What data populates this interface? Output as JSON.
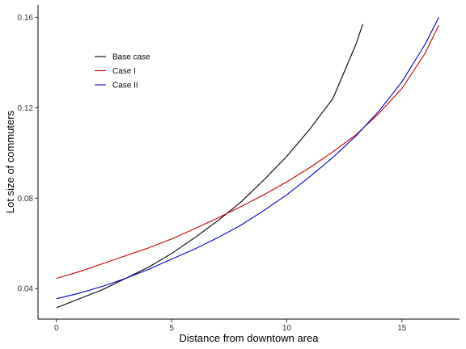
{
  "chart_data": {
    "type": "line",
    "title": "",
    "xlabel": "Distance from downtown area",
    "ylabel": "Lot size of commuters",
    "xlim": [
      -0.8,
      17.5
    ],
    "ylim": [
      0.0265,
      0.1655
    ],
    "x_ticks": [
      0,
      5,
      10,
      15
    ],
    "x_tick_labels": [
      "0",
      "5",
      "10",
      "15"
    ],
    "y_ticks": [
      0.04,
      0.08,
      0.12,
      0.16
    ],
    "y_tick_labels": [
      "0.04",
      "0.08",
      "0.12",
      "0.16"
    ],
    "grid": false,
    "legend_position": "top-left",
    "series": [
      {
        "name": "Base case",
        "color": "#000000",
        "x": [
          0,
          1,
          2,
          3,
          4,
          5,
          6,
          7,
          8,
          9,
          10,
          11,
          12,
          13,
          13.3
        ],
        "y": [
          0.0315,
          0.0355,
          0.0395,
          0.0445,
          0.0495,
          0.0555,
          0.0625,
          0.07,
          0.0782,
          0.088,
          0.0985,
          0.1105,
          0.124,
          0.148,
          0.157
        ]
      },
      {
        "name": "Case I",
        "color": "#cc0000",
        "x": [
          0,
          1,
          2,
          3,
          4,
          5,
          6,
          7,
          8,
          9,
          10,
          11,
          12,
          13,
          14,
          15,
          16,
          16.6
        ],
        "y": [
          0.0445,
          0.0475,
          0.051,
          0.0545,
          0.058,
          0.062,
          0.0665,
          0.0712,
          0.0762,
          0.0815,
          0.0872,
          0.0935,
          0.1005,
          0.108,
          0.1175,
          0.1285,
          0.144,
          0.1565
        ]
      },
      {
        "name": "Case II",
        "color": "#0000cc",
        "x": [
          0,
          1,
          2,
          3,
          4,
          5,
          6,
          7,
          8,
          9,
          10,
          11,
          12,
          13,
          14,
          15,
          16,
          16.6
        ],
        "y": [
          0.0355,
          0.038,
          0.041,
          0.0445,
          0.0485,
          0.053,
          0.0575,
          0.0625,
          0.068,
          0.0745,
          0.0815,
          0.0895,
          0.098,
          0.1075,
          0.1185,
          0.1315,
          0.148,
          0.16
        ]
      }
    ]
  }
}
